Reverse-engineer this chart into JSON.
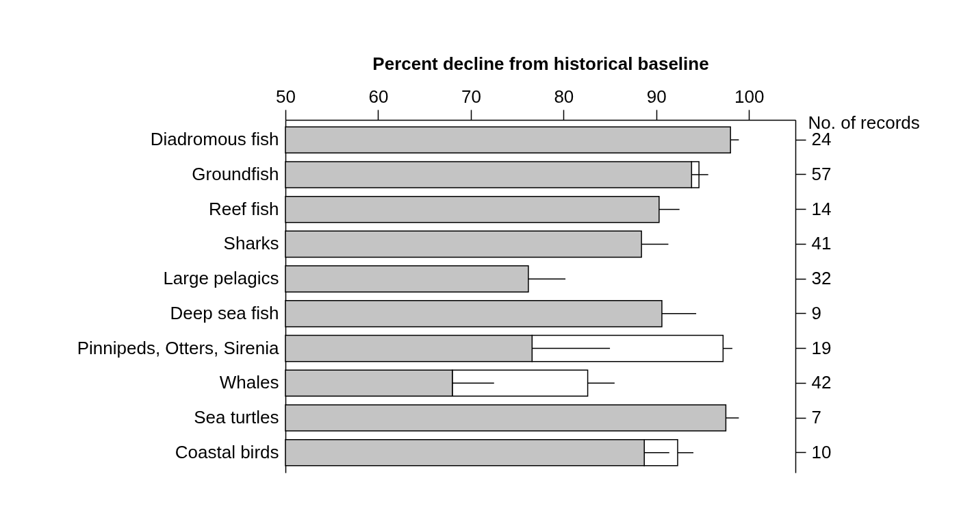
{
  "chart_data": {
    "type": "bar",
    "orientation": "horizontal",
    "xlabel": "Percent decline from historical baseline",
    "categories": [
      "Diadromous fish",
      "Groundfish",
      "Reef fish",
      "Sharks",
      "Large pelagics",
      "Deep sea fish",
      "Pinnipeds, Otters, Sirenia",
      "Whales",
      "Sea turtles",
      "Coastal birds"
    ],
    "series": [
      {
        "color": "#ffffff",
        "base": [
          null,
          93.8,
          null,
          null,
          null,
          null,
          76.6,
          68.0,
          null,
          88.7
        ],
        "values": [
          null,
          0.8,
          null,
          null,
          null,
          null,
          20.6,
          14.6,
          null,
          3.6
        ],
        "errors": [
          null,
          null,
          null,
          null,
          null,
          null,
          [
            97.2,
            98.2
          ],
          [
            82.6,
            85.5
          ],
          null,
          [
            92.3,
            94.0
          ]
        ]
      },
      {
        "color": "#c4c4c4",
        "values": [
          98.0,
          93.8,
          90.3,
          88.4,
          76.2,
          90.6,
          76.6,
          68.0,
          97.5,
          88.7
        ],
        "errors": [
          [
            98.0,
            98.9
          ],
          [
            93.8,
            95.6
          ],
          [
            90.3,
            92.5
          ],
          [
            88.4,
            91.3
          ],
          [
            76.2,
            80.2
          ],
          [
            90.6,
            94.3
          ],
          [
            76.6,
            85.0
          ],
          [
            68.0,
            72.5
          ],
          [
            97.5,
            98.9
          ],
          [
            88.7,
            91.4
          ]
        ]
      }
    ],
    "xlim": [
      50,
      105
    ],
    "xticks": [
      50,
      60,
      70,
      80,
      90,
      100
    ],
    "annotations": [
      "No. of records",
      "24",
      "57",
      "14",
      "41",
      "32",
      "9",
      "19",
      "42",
      "7",
      "10"
    ]
  }
}
